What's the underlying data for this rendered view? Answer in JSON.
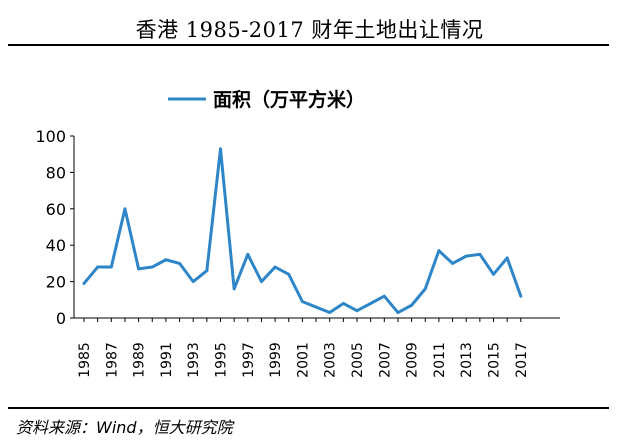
{
  "header": {
    "title": "香港 1985-2017 财年土地出让情况"
  },
  "footer": {
    "source": "资料来源：Wind，恒大研究院"
  },
  "colors": {
    "series": "#2E86C8",
    "axis": "#000000",
    "text": "#000000"
  },
  "chart_data": {
    "type": "line",
    "title": "香港 1985-2017 财年土地出让情况",
    "xlabel": "",
    "ylabel": "",
    "ylim": [
      0,
      100
    ],
    "yticks": [
      0,
      20,
      40,
      60,
      80,
      100
    ],
    "xtick_labels": [
      "1985",
      "1987",
      "1989",
      "1991",
      "1993",
      "1995",
      "1997",
      "1999",
      "2001",
      "2003",
      "2005",
      "2007",
      "2009",
      "2011",
      "2013",
      "2015",
      "2017"
    ],
    "grid": false,
    "legend": "top-left",
    "x": [
      1985,
      1986,
      1987,
      1988,
      1989,
      1990,
      1991,
      1992,
      1993,
      1994,
      1995,
      1996,
      1997,
      1998,
      1999,
      2000,
      2001,
      2002,
      2003,
      2004,
      2005,
      2006,
      2007,
      2008,
      2009,
      2010,
      2011,
      2012,
      2013,
      2014,
      2015,
      2016,
      2017
    ],
    "series": [
      {
        "name": "面积（万平方米）",
        "values": [
          19,
          28,
          28,
          60,
          27,
          28,
          32,
          30,
          20,
          26,
          93,
          16,
          35,
          20,
          28,
          24,
          9,
          6,
          3,
          8,
          4,
          8,
          12,
          3,
          7,
          16,
          37,
          30,
          34,
          35,
          24,
          33,
          12
        ]
      }
    ]
  }
}
